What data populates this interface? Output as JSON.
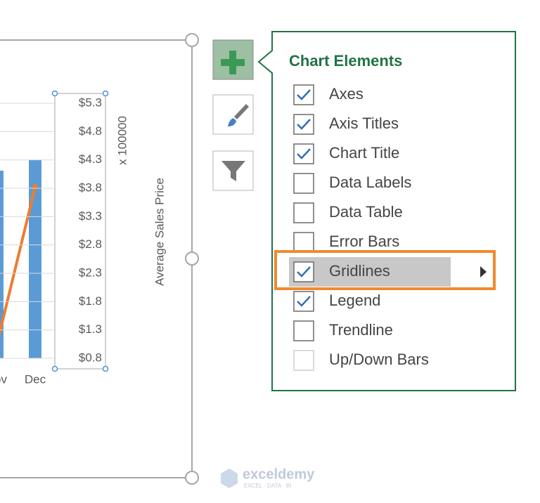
{
  "chart": {
    "axis_ticks": [
      "$5.3",
      "$4.8",
      "$4.3",
      "$3.8",
      "$3.3",
      "$2.8",
      "$2.3",
      "$1.8",
      "$1.3",
      "$0.8"
    ],
    "axis_unit": "x 100000",
    "axis_title": "Average Sales Price",
    "categories": [
      "ov",
      "Dec"
    ]
  },
  "panel": {
    "title": "Chart Elements",
    "items": [
      {
        "label": "Axes",
        "checked": true
      },
      {
        "label": "Axis Titles",
        "checked": true
      },
      {
        "label": "Chart Title",
        "checked": true
      },
      {
        "label": "Data Labels",
        "checked": false
      },
      {
        "label": "Data Table",
        "checked": false
      },
      {
        "label": "Error Bars",
        "checked": false
      },
      {
        "label": "Gridlines",
        "checked": true,
        "selected": true
      },
      {
        "label": "Legend",
        "checked": true
      },
      {
        "label": "Trendline",
        "checked": false
      },
      {
        "label": "Up/Down Bars",
        "checked": false,
        "enabled": false
      }
    ]
  },
  "watermark": {
    "name": "exceldemy",
    "tagline": "EXCEL · DATA · BI"
  }
}
